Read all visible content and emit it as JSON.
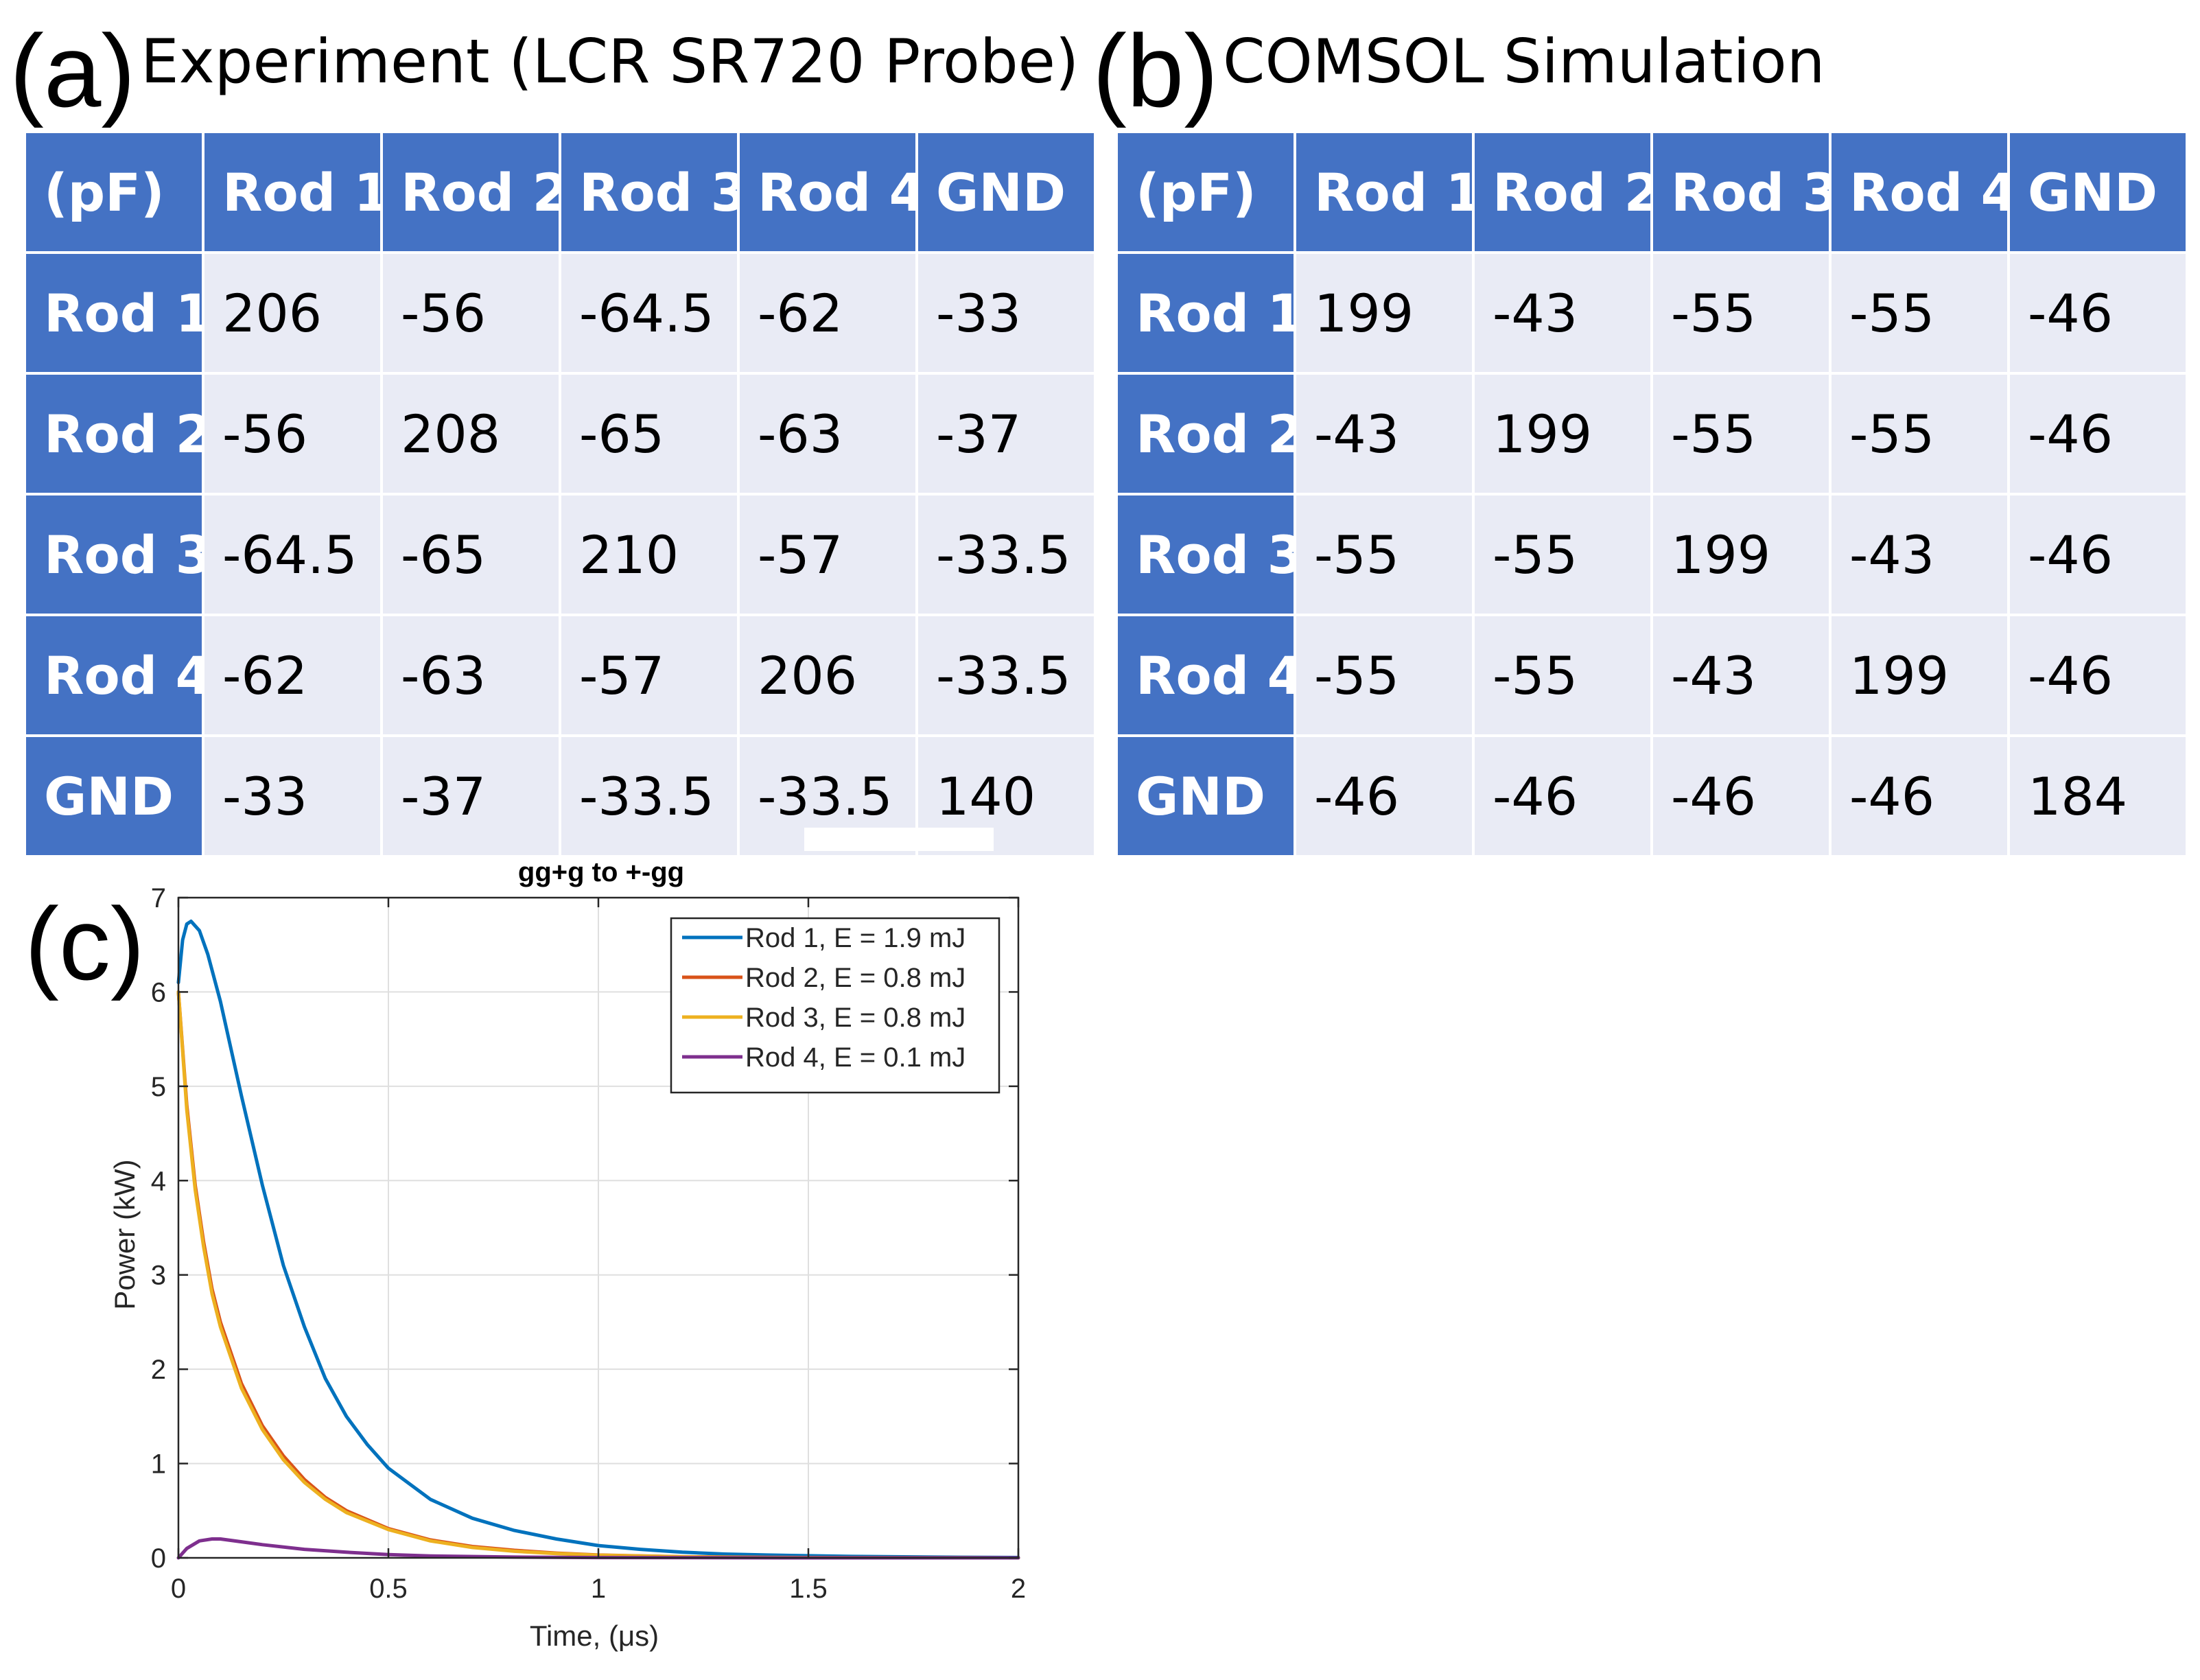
{
  "panels": {
    "a": {
      "letter": "(a)",
      "title": "Experiment (LCR SR720 Probe)"
    },
    "b": {
      "letter": "(b)",
      "title": "COMSOL Simulation"
    },
    "c": {
      "letter": "(c)"
    }
  },
  "table_a": {
    "unit": "(pF)",
    "columns": [
      "Rod 1",
      "Rod 2",
      "Rod 3",
      "Rod 4",
      "GND"
    ],
    "rows": [
      {
        "label": "Rod 1",
        "values": [
          "206",
          "-56",
          "-64.5",
          "-62",
          "-33"
        ]
      },
      {
        "label": "Rod 2",
        "values": [
          "-56",
          "208",
          "-65",
          "-63",
          "-37"
        ]
      },
      {
        "label": "Rod 3",
        "values": [
          "-64.5",
          "-65",
          "210",
          "-57",
          "-33.5"
        ]
      },
      {
        "label": "Rod 4",
        "values": [
          "-62",
          "-63",
          "-57",
          "206",
          "-33.5"
        ]
      },
      {
        "label": "GND",
        "values": [
          "-33",
          "-37",
          "-33.5",
          "-33.5",
          "140"
        ]
      }
    ]
  },
  "table_b": {
    "unit": "(pF)",
    "columns": [
      "Rod 1",
      "Rod 2",
      "Rod 3",
      "Rod 4",
      "GND"
    ],
    "rows": [
      {
        "label": "Rod 1",
        "values": [
          "199",
          "-43",
          "-55",
          "-55",
          "-46"
        ]
      },
      {
        "label": "Rod 2",
        "values": [
          "-43",
          "199",
          "-55",
          "-55",
          "-46"
        ]
      },
      {
        "label": "Rod 3",
        "values": [
          "-55",
          "-55",
          "199",
          "-43",
          "-46"
        ]
      },
      {
        "label": "Rod 4",
        "values": [
          "-55",
          "-55",
          "-43",
          "199",
          "-46"
        ]
      },
      {
        "label": "GND",
        "values": [
          "-46",
          "-46",
          "-46",
          "-46",
          "184"
        ]
      }
    ]
  },
  "chart_data": {
    "type": "line",
    "title": "gg+g to +-gg",
    "xlabel": "Time, (μs)",
    "ylabel": "Power (kW)",
    "xlim": [
      0,
      2
    ],
    "ylim": [
      0,
      7
    ],
    "xticks": [
      0,
      0.5,
      1,
      1.5,
      2
    ],
    "xticklabels": [
      "0",
      "0.5",
      "1",
      "1.5",
      "2"
    ],
    "yticks": [
      0,
      1,
      2,
      3,
      4,
      5,
      6,
      7
    ],
    "yticklabels": [
      "0",
      "1",
      "2",
      "3",
      "4",
      "5",
      "6",
      "7"
    ],
    "grid": true,
    "legend_position": "top-right",
    "series": [
      {
        "name": "Rod 1, E = 1.9 mJ",
        "color": "#0072bd",
        "x": [
          0,
          0.01,
          0.02,
          0.03,
          0.05,
          0.07,
          0.1,
          0.15,
          0.2,
          0.25,
          0.3,
          0.35,
          0.4,
          0.45,
          0.5,
          0.6,
          0.7,
          0.8,
          0.9,
          1.0,
          1.1,
          1.2,
          1.3,
          1.4,
          1.6,
          1.8,
          2.0
        ],
        "y": [
          6.1,
          6.55,
          6.72,
          6.75,
          6.65,
          6.4,
          5.9,
          4.9,
          3.95,
          3.1,
          2.45,
          1.9,
          1.5,
          1.2,
          0.95,
          0.62,
          0.42,
          0.29,
          0.2,
          0.13,
          0.09,
          0.06,
          0.04,
          0.03,
          0.015,
          0.008,
          0.004
        ]
      },
      {
        "name": "Rod 2, E = 0.8 mJ",
        "color": "#d95319",
        "x": [
          0,
          0.02,
          0.04,
          0.06,
          0.08,
          0.1,
          0.15,
          0.2,
          0.25,
          0.3,
          0.35,
          0.4,
          0.5,
          0.6,
          0.7,
          0.8,
          0.9,
          1.0,
          1.2,
          1.4,
          1.6,
          1.8,
          2.0
        ],
        "y": [
          6.0,
          4.8,
          3.95,
          3.35,
          2.85,
          2.5,
          1.85,
          1.4,
          1.08,
          0.83,
          0.64,
          0.5,
          0.31,
          0.19,
          0.12,
          0.08,
          0.05,
          0.03,
          0.012,
          0.005,
          0.002,
          0.001,
          0.0
        ]
      },
      {
        "name": "Rod 3, E = 0.8 mJ",
        "color": "#edb120",
        "x": [
          0,
          0.02,
          0.04,
          0.06,
          0.08,
          0.1,
          0.15,
          0.2,
          0.25,
          0.3,
          0.35,
          0.4,
          0.5,
          0.6,
          0.7,
          0.8,
          0.9,
          1.0,
          1.2,
          1.4,
          1.6,
          1.8,
          2.0
        ],
        "y": [
          6.0,
          4.75,
          3.9,
          3.3,
          2.8,
          2.45,
          1.8,
          1.36,
          1.04,
          0.8,
          0.62,
          0.48,
          0.3,
          0.18,
          0.11,
          0.07,
          0.045,
          0.028,
          0.011,
          0.004,
          0.002,
          0.001,
          0.0
        ]
      },
      {
        "name": "Rod 4, E = 0.1 mJ",
        "color": "#7e2f8e",
        "x": [
          0,
          0.02,
          0.05,
          0.08,
          0.1,
          0.15,
          0.2,
          0.3,
          0.4,
          0.5,
          0.6,
          0.8,
          1.0,
          1.5,
          2.0
        ],
        "y": [
          0.0,
          0.1,
          0.18,
          0.2,
          0.2,
          0.17,
          0.14,
          0.09,
          0.06,
          0.035,
          0.02,
          0.008,
          0.003,
          0.0,
          0.0
        ]
      }
    ]
  }
}
